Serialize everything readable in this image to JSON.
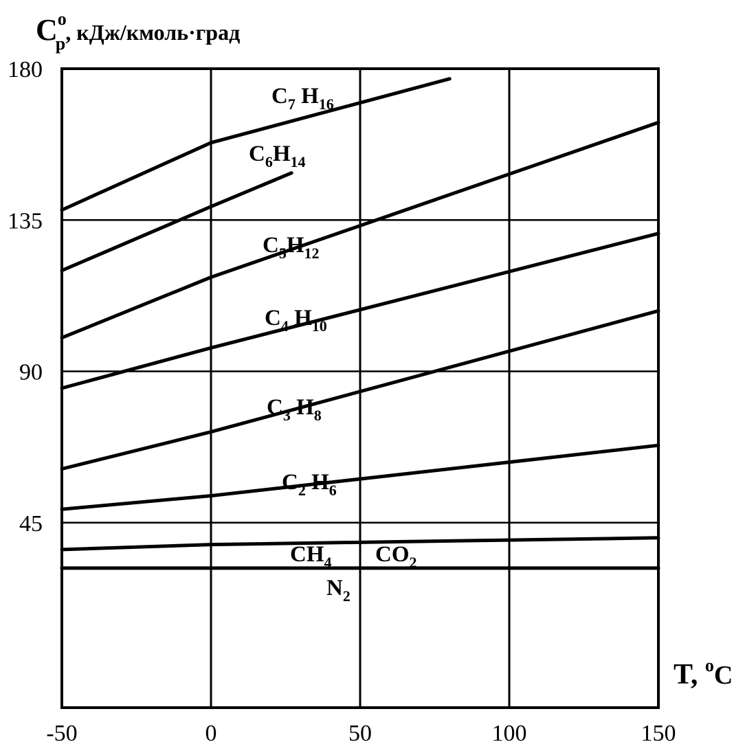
{
  "chart_data": {
    "type": "line",
    "title": "",
    "ylabel": {
      "main": "C",
      "sub": "p",
      "sup": "o",
      "unit": ", кДж/кмоль·град"
    },
    "xlabel": {
      "main": "T, ",
      "sup": "o",
      "unit": "C"
    },
    "xlim": [
      -50,
      150
    ],
    "ylim": [
      -10,
      180
    ],
    "x_ticks": [
      "-50",
      "0",
      "50",
      "100",
      "150"
    ],
    "x_tick_values": [
      -50,
      0,
      50,
      100,
      150
    ],
    "y_ticks": [
      "180",
      "135",
      "90",
      "45"
    ],
    "y_tick_values": [
      180,
      135,
      90,
      45
    ],
    "grid": true,
    "series": [
      {
        "key": "c7h16",
        "label": {
          "parts": [
            [
              "C",
              ""
            ],
            [
              "7",
              "sub"
            ],
            [
              " H",
              ""
            ],
            [
              "16",
              "sub"
            ]
          ]
        },
        "x": [
          -50,
          0,
          80
        ],
        "y": [
          138,
          158,
          177
        ]
      },
      {
        "key": "c6h14",
        "label": {
          "parts": [
            [
              "C",
              ""
            ],
            [
              "6",
              "sub"
            ],
            [
              "H",
              ""
            ],
            [
              "14",
              "sub"
            ]
          ]
        },
        "x": [
          -50,
          0,
          27
        ],
        "y": [
          120,
          139,
          149
        ]
      },
      {
        "key": "c5h12",
        "label": {
          "parts": [
            [
              "C",
              ""
            ],
            [
              "5",
              "sub"
            ],
            [
              "H",
              ""
            ],
            [
              "12",
              "sub"
            ]
          ]
        },
        "x": [
          -50,
          0,
          150
        ],
        "y": [
          100,
          118,
          164
        ]
      },
      {
        "key": "c4h10",
        "label": {
          "parts": [
            [
              "C",
              ""
            ],
            [
              "4",
              "sub"
            ],
            [
              " H",
              ""
            ],
            [
              "10",
              "sub"
            ]
          ]
        },
        "x": [
          -50,
          0,
          150
        ],
        "y": [
          85,
          97,
          131
        ]
      },
      {
        "key": "c3h8",
        "label": {
          "parts": [
            [
              "C",
              ""
            ],
            [
              "3",
              "sub"
            ],
            [
              " H",
              ""
            ],
            [
              "8",
              "sub"
            ]
          ]
        },
        "x": [
          -50,
          0,
          150
        ],
        "y": [
          61,
          72,
          108
        ]
      },
      {
        "key": "c2h6",
        "label": {
          "parts": [
            [
              "C",
              ""
            ],
            [
              "2",
              "sub"
            ],
            [
              " H",
              ""
            ],
            [
              "6",
              "sub"
            ]
          ]
        },
        "x": [
          -50,
          0,
          150
        ],
        "y": [
          49,
          53,
          68
        ]
      },
      {
        "key": "co2",
        "label": {
          "parts": [
            [
              "CO",
              ""
            ],
            [
              "2",
              "sub"
            ]
          ]
        },
        "x": [
          -50,
          0,
          150
        ],
        "y": [
          37,
          38.5,
          40.5
        ]
      },
      {
        "key": "ch4",
        "label": {
          "parts": [
            [
              "CH",
              ""
            ],
            [
              "4",
              "sub"
            ]
          ]
        },
        "x": [
          -50,
          150
        ],
        "y": [
          45,
          45
        ],
        "dashed": true
      },
      {
        "key": "n2",
        "label": {
          "parts": [
            [
              "N",
              ""
            ],
            [
              "2",
              "sub"
            ]
          ]
        },
        "x": [
          -50,
          150
        ],
        "y": [
          31.5,
          31.5
        ]
      }
    ]
  }
}
